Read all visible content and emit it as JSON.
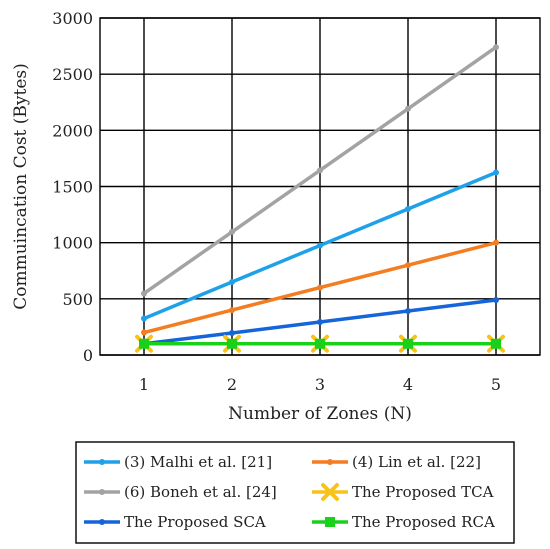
{
  "chart_data": {
    "type": "line",
    "title": "",
    "xlabel": "Number of Zones (N)",
    "ylabel": "Commuincation Cost (Bytes)",
    "x": [
      1,
      2,
      3,
      4,
      5
    ],
    "xlim": [
      0.5,
      5.5
    ],
    "ylim": [
      0,
      3000
    ],
    "yticks": [
      0,
      500,
      1000,
      1500,
      2000,
      2500,
      3000
    ],
    "grid": true,
    "legend_position": "bottom",
    "series": [
      {
        "name": "(3) Malhi et al. [21]",
        "values": [
          325,
          650,
          975,
          1300,
          1625
        ],
        "color": "#1ea1e8",
        "marker": "circle"
      },
      {
        "name": "(4) Lin et al. [22]",
        "values": [
          200,
          400,
          600,
          800,
          1000
        ],
        "color": "#f47c21",
        "marker": "circle"
      },
      {
        "name": "(6) Boneh et al. [24]",
        "values": [
          548,
          1096,
          1644,
          2192,
          2740
        ],
        "color": "#a3a3a3",
        "marker": "circle"
      },
      {
        "name": "The Proposed TCA",
        "values": [
          100,
          100,
          100,
          100,
          100
        ],
        "color": "#f7c31a",
        "marker": "x"
      },
      {
        "name": "The Proposed SCA",
        "values": [
          100,
          196,
          294,
          392,
          490
        ],
        "color": "#1565d8",
        "marker": "circle"
      },
      {
        "name": "The Proposed RCA",
        "values": [
          100,
          100,
          100,
          100,
          100
        ],
        "color": "#1ad11a",
        "marker": "square"
      }
    ]
  }
}
